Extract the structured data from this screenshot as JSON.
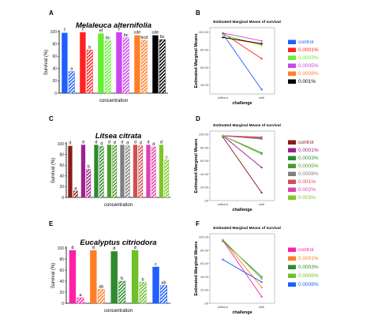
{
  "chart_data": [
    {
      "panel": "A",
      "type": "bar",
      "title": "Melaleuca alternifolia",
      "xlabel": "concentration",
      "ylabel": "Survival (%)",
      "ylim": [
        0,
        100
      ],
      "yticks": [
        0,
        20,
        40,
        60,
        80,
        100
      ],
      "colors": [
        "#1f5fff",
        "#ff2020",
        "#66ee33",
        "#cc44ee",
        "#ff7f27",
        "#000000"
      ],
      "groups": [
        {
          "solid": 98,
          "hatched": 35,
          "solid_label": "f",
          "hatched_label": "a"
        },
        {
          "solid": 99,
          "hatched": 70,
          "solid_label": "f",
          "hatched_label": "b"
        },
        {
          "solid": 97,
          "hatched": 85,
          "solid_label": "ef",
          "hatched_label": "bc"
        },
        {
          "solid": 99,
          "hatched": 90,
          "solid_label": "f",
          "hatched_label": "bc"
        },
        {
          "solid": 94,
          "hatched": 86,
          "solid_label": "cde",
          "hatched_label": "bcd"
        },
        {
          "solid": 94,
          "hatched": 87,
          "solid_label": "cde",
          "hatched_label": "bc"
        }
      ]
    },
    {
      "panel": "B",
      "type": "line",
      "title": "Estimated Marginal Means of survival",
      "xlabel": "challenge",
      "ylabel": "Estimated Marginal Means",
      "categories": [
        "without",
        "with"
      ],
      "ylim": [
        30,
        105
      ],
      "yticks": [
        40,
        60,
        80,
        100
      ],
      "ytick_labels": [
        "40.00",
        "60.00",
        "80.00",
        "100.00"
      ],
      "series": [
        {
          "name": "control",
          "color": "#1f5fff",
          "values": [
            98,
            35
          ]
        },
        {
          "name": "0.0001%",
          "color": "#ff2020",
          "values": [
            99,
            70
          ]
        },
        {
          "name": "0.0003%",
          "color": "#66ee33",
          "values": [
            97,
            85
          ]
        },
        {
          "name": "0.0005%",
          "color": "#cc44ee",
          "values": [
            99,
            90
          ]
        },
        {
          "name": "0.0008%",
          "color": "#ff7f27",
          "values": [
            94,
            86
          ]
        },
        {
          "name": "0.001%",
          "color": "#000000",
          "values": [
            94,
            87
          ]
        }
      ]
    },
    {
      "panel": "C",
      "type": "bar",
      "title": "Litsea citrata",
      "xlabel": "concentration",
      "ylabel": "Survival (%)",
      "ylim": [
        0,
        100
      ],
      "yticks": [
        0,
        20,
        40,
        60,
        80,
        100
      ],
      "colors": [
        "#8b1a1a",
        "#a0208f",
        "#2e8b2e",
        "#4c9a2a",
        "#7f7f7f",
        "#d05050",
        "#e040b0",
        "#7ec82a"
      ],
      "groups": [
        {
          "solid": 96,
          "hatched": 12,
          "solid_label": "d",
          "hatched_label": "a"
        },
        {
          "solid": 98,
          "hatched": 52,
          "solid_label": "d",
          "hatched_label": "b"
        },
        {
          "solid": 98,
          "hatched": 95,
          "solid_label": "d",
          "hatched_label": "d"
        },
        {
          "solid": 98,
          "hatched": 97,
          "solid_label": "d",
          "hatched_label": "d"
        },
        {
          "solid": 98,
          "hatched": 96,
          "solid_label": "d",
          "hatched_label": "d"
        },
        {
          "solid": 98,
          "hatched": 96,
          "solid_label": "d",
          "hatched_label": "d"
        },
        {
          "solid": 98,
          "hatched": 94,
          "solid_label": "d",
          "hatched_label": "d"
        },
        {
          "solid": 98,
          "hatched": 70,
          "solid_label": "d",
          "hatched_label": "c"
        }
      ]
    },
    {
      "panel": "D",
      "type": "line",
      "title": "Estimated Marginal Means of survival",
      "xlabel": "challenge",
      "ylabel": "Estimated Marginal Means",
      "categories": [
        "without",
        "with"
      ],
      "ylim": [
        0,
        105
      ],
      "yticks": [
        0,
        20,
        40,
        60,
        80,
        100
      ],
      "ytick_labels": [
        ".00",
        "20.00",
        "40.00",
        "60.00",
        "80.00",
        "100.00"
      ],
      "series": [
        {
          "name": "control",
          "color": "#8b1a1a",
          "values": [
            96,
            12
          ]
        },
        {
          "name": "0.0001%",
          "color": "#a0208f",
          "values": [
            98,
            50
          ]
        },
        {
          "name": "0.0003%",
          "color": "#2e8b2e",
          "values": [
            98,
            72
          ]
        },
        {
          "name": "0.0005%",
          "color": "#4c9a2a",
          "values": [
            98,
            93
          ]
        },
        {
          "name": "0.0008%",
          "color": "#7f7f7f",
          "values": [
            98,
            95
          ]
        },
        {
          "name": "0.001%",
          "color": "#d05050",
          "values": [
            98,
            96
          ]
        },
        {
          "name": "0.002%",
          "color": "#e040b0",
          "values": [
            98,
            94
          ]
        },
        {
          "name": "0.003%",
          "color": "#7ec82a",
          "values": [
            98,
            70
          ]
        }
      ]
    },
    {
      "panel": "E",
      "type": "bar",
      "title": "Eucalyptus citriodora",
      "xlabel": "concentration",
      "ylabel": "Survival (%)",
      "ylim": [
        0,
        100
      ],
      "yticks": [
        0,
        20,
        40,
        60,
        80,
        100
      ],
      "colors": [
        "#ff1fa8",
        "#ff7f27",
        "#2e8b2e",
        "#6fbf2a",
        "#1f5fff"
      ],
      "groups": [
        {
          "solid": 96,
          "hatched": 10,
          "solid_label": "d",
          "hatched_label": "a"
        },
        {
          "solid": 96,
          "hatched": 25,
          "solid_label": "d",
          "hatched_label": "ab"
        },
        {
          "solid": 94,
          "hatched": 40,
          "solid_label": "d",
          "hatched_label": "b"
        },
        {
          "solid": 96,
          "hatched": 38,
          "solid_label": "d",
          "hatched_label": "b"
        },
        {
          "solid": 66,
          "hatched": 32,
          "solid_label": "c",
          "hatched_label": "ab"
        }
      ]
    },
    {
      "panel": "F",
      "type": "line",
      "title": "Estimated Marginal Means of survival",
      "xlabel": "challenge",
      "ylabel": "Estimated Marginal Means",
      "categories": [
        "without",
        "with"
      ],
      "ylim": [
        0,
        105
      ],
      "yticks": [
        0,
        20,
        40,
        60,
        80,
        100
      ],
      "ytick_labels": [
        ".00",
        "20.00",
        "40.00",
        "60.00",
        "80.00",
        "100.00"
      ],
      "series": [
        {
          "name": "control",
          "color": "#ff1fa8",
          "values": [
            95,
            10
          ]
        },
        {
          "name": "0.0001%",
          "color": "#ff7f27",
          "values": [
            96,
            24
          ]
        },
        {
          "name": "0.0003%",
          "color": "#2e8b2e",
          "values": [
            94,
            40
          ]
        },
        {
          "name": "0.0005%",
          "color": "#6fbf2a",
          "values": [
            96,
            37
          ]
        },
        {
          "name": "0.0008%",
          "color": "#1f5fff",
          "values": [
            66,
            32
          ]
        }
      ]
    }
  ]
}
